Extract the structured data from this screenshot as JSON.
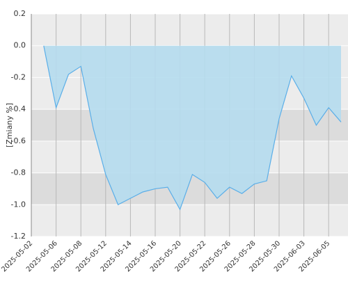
{
  "chart_data": {
    "type": "area",
    "y_label": "[Zmiany %]",
    "categories": [
      "2025-05-02",
      null,
      "2025-05-06",
      null,
      "2025-05-08",
      null,
      "2025-05-12",
      null,
      "2025-05-14",
      null,
      "2025-05-16",
      null,
      "2025-05-20",
      null,
      "2025-05-22",
      null,
      "2025-05-26",
      null,
      "2025-05-28",
      null,
      "2025-05-30",
      null,
      "2025-06-03",
      null,
      "2025-06-05",
      null
    ],
    "values": [
      null,
      0.0,
      -0.39,
      -0.18,
      -0.13,
      -0.52,
      -0.81,
      -1.0,
      -0.96,
      -0.92,
      -0.9,
      -0.89,
      -1.03,
      -0.81,
      -0.86,
      -0.96,
      -0.89,
      -0.93,
      -0.87,
      -0.85,
      -0.46,
      -0.19,
      -0.33,
      -0.5,
      -0.39,
      -0.48
    ],
    "color": "#5aaee8",
    "fill": "#b5dcee",
    "ylim": [
      -1.2,
      0.2
    ],
    "yticks": [
      0.2,
      {
        "value": 0,
        "label": "0.0"
      },
      -0.2,
      -0.4,
      -0.6,
      -0.8,
      {
        "value": -1,
        "label": "-1.0"
      },
      -1.2
    ],
    "grid": true
  }
}
